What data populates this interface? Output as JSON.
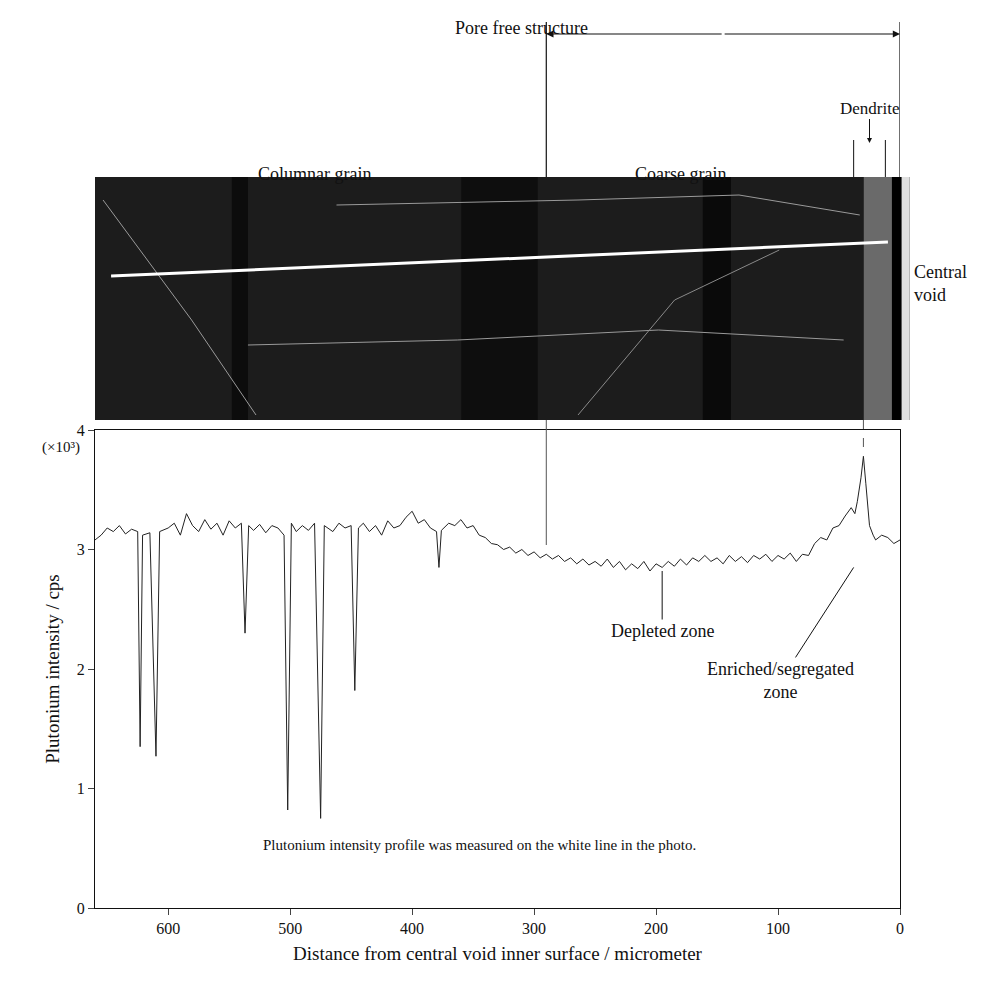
{
  "chart_data": {
    "type": "line",
    "x_label": "Distance from central void inner surface / micrometer",
    "y_label": "Plutonium intensity / cps",
    "color": "#222222",
    "grid": false,
    "xlim": [
      660,
      0
    ],
    "ylim": [
      0,
      4
    ],
    "xticks": [
      0,
      100,
      200,
      300,
      400,
      500,
      600
    ],
    "yticks": [
      0,
      1,
      2,
      3,
      4
    ],
    "x": [
      660,
      655,
      650,
      645,
      640,
      635,
      630,
      625,
      623,
      621,
      615,
      610,
      607,
      600,
      595,
      590,
      585,
      580,
      575,
      570,
      565,
      560,
      555,
      550,
      545,
      540,
      537,
      534,
      530,
      525,
      520,
      515,
      510,
      505,
      502,
      499,
      495,
      490,
      485,
      480,
      475,
      472,
      465,
      460,
      455,
      450,
      447,
      444,
      440,
      435,
      430,
      425,
      420,
      415,
      410,
      405,
      400,
      395,
      390,
      385,
      380,
      378,
      376,
      370,
      365,
      360,
      355,
      350,
      345,
      340,
      335,
      330,
      325,
      320,
      315,
      310,
      305,
      300,
      295,
      290,
      285,
      280,
      275,
      270,
      265,
      260,
      255,
      250,
      245,
      240,
      235,
      230,
      225,
      220,
      215,
      210,
      205,
      200,
      195,
      190,
      185,
      180,
      175,
      170,
      165,
      160,
      155,
      150,
      145,
      140,
      135,
      130,
      125,
      120,
      115,
      110,
      105,
      100,
      95,
      90,
      85,
      80,
      75,
      70,
      65,
      60,
      55,
      50,
      45,
      40,
      37,
      35,
      32,
      30,
      28,
      25,
      22,
      20,
      15,
      10,
      5,
      0
    ],
    "values": [
      3.08,
      3.12,
      3.18,
      3.15,
      3.2,
      3.13,
      3.17,
      3.15,
      1.35,
      3.12,
      3.14,
      1.27,
      3.15,
      3.18,
      3.22,
      3.12,
      3.3,
      3.2,
      3.15,
      3.25,
      3.17,
      3.22,
      3.12,
      3.24,
      3.18,
      3.22,
      2.3,
      3.2,
      3.16,
      3.21,
      3.14,
      3.2,
      3.18,
      3.12,
      0.82,
      3.22,
      3.15,
      3.2,
      3.16,
      3.22,
      0.75,
      3.2,
      3.15,
      3.22,
      3.18,
      3.2,
      1.82,
      3.18,
      3.22,
      3.15,
      3.2,
      3.12,
      3.24,
      3.18,
      3.2,
      3.27,
      3.32,
      3.22,
      3.25,
      3.18,
      3.15,
      2.85,
      3.16,
      3.22,
      3.2,
      3.25,
      3.18,
      3.2,
      3.12,
      3.1,
      3.05,
      3.04,
      3.0,
      3.02,
      2.97,
      3.0,
      2.95,
      2.98,
      2.93,
      2.96,
      2.92,
      2.95,
      2.9,
      2.93,
      2.88,
      2.92,
      2.87,
      2.9,
      2.86,
      2.92,
      2.85,
      2.9,
      2.83,
      2.88,
      2.84,
      2.9,
      2.82,
      2.88,
      2.85,
      2.9,
      2.86,
      2.92,
      2.87,
      2.93,
      2.9,
      2.95,
      2.9,
      2.93,
      2.88,
      2.95,
      2.9,
      2.94,
      2.89,
      2.95,
      2.92,
      2.96,
      2.9,
      2.95,
      2.92,
      2.97,
      2.9,
      2.96,
      2.95,
      3.05,
      3.1,
      3.08,
      3.18,
      3.2,
      3.28,
      3.35,
      3.3,
      3.4,
      3.6,
      3.78,
      3.55,
      3.2,
      3.12,
      3.08,
      3.12,
      3.1,
      3.05,
      3.08
    ],
    "y_multiplier": "(×10³)",
    "annotations": {
      "depleted": "Depleted zone",
      "enriched": "Enriched/segregated zone",
      "note": "Plutonium intensity profile was measured on the white line in the photo."
    },
    "photo_labels": {
      "pore_free": "Pore free structure",
      "columnar": "Columnar grain",
      "coarse": "Coarse grain",
      "dendrite": "Dendrite",
      "void": "Central void"
    }
  }
}
